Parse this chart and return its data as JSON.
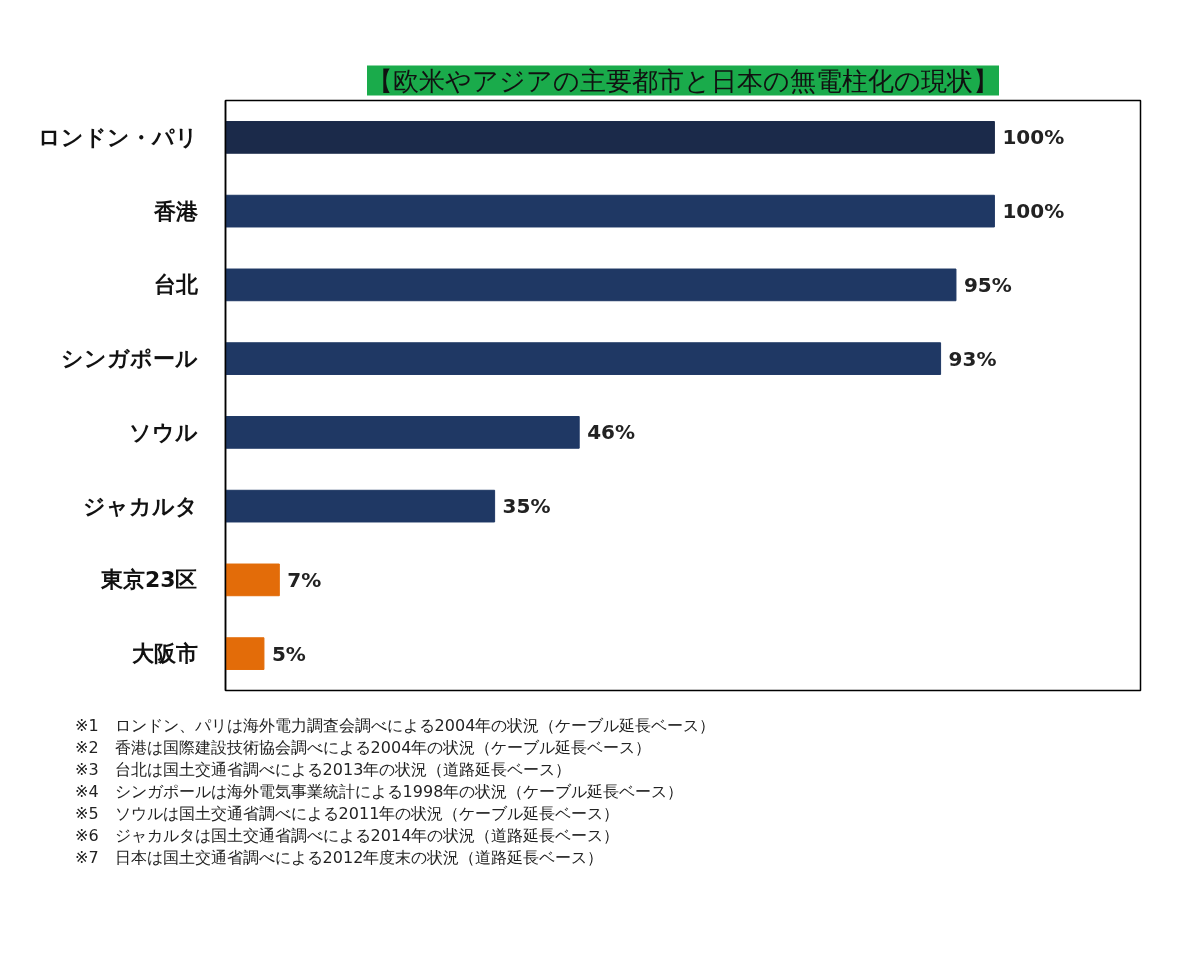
{
  "chart_data": {
    "type": "bar",
    "orientation": "horizontal",
    "title": "【欧米やアジアの主要都市と日本の無電柱化の現状】",
    "categories": [
      "ロンドン・パリ",
      "香港",
      "台北",
      "シンガポール",
      "ソウル",
      "ジャカルタ",
      "東京23区",
      "大阪市"
    ],
    "values": [
      100,
      100,
      95,
      93,
      46,
      35,
      7,
      5
    ],
    "colors": [
      "#1b2a4a",
      "#1f3864",
      "#1f3864",
      "#1f3864",
      "#1f3864",
      "#1f3864",
      "#e36c09",
      "#e36c09"
    ],
    "value_labels": [
      "100%",
      "100%",
      "95%",
      "93%",
      "46%",
      "35%",
      "7%",
      "5%"
    ],
    "xlim": [
      0,
      119
    ],
    "grid": false,
    "tick_labels": "y",
    "annotations": [
      "※1　ロンドン、パリは海外電力調査会調べによる2004年の状況（ケーブル延長ベース）",
      "※2　香港は国際建設技術協会調べによる2004年の状況（ケーブル延長ベース）",
      "※3　台北は国土交通省調べによる2013年の状況（道路延長ベース）",
      "※4　シンガポールは海外電気事業統計による1998年の状況（ケーブル延長ベース）",
      "※5　ソウルは国土交通省調べによる2011年の状況（ケーブル延長ベース）",
      "※6　ジャカルタは国土交通省調べによる2014年の状況（道路延長ベース）",
      "※7　日本は国土交通省調べによる2012年度末の状況（道路延長ベース）"
    ]
  }
}
